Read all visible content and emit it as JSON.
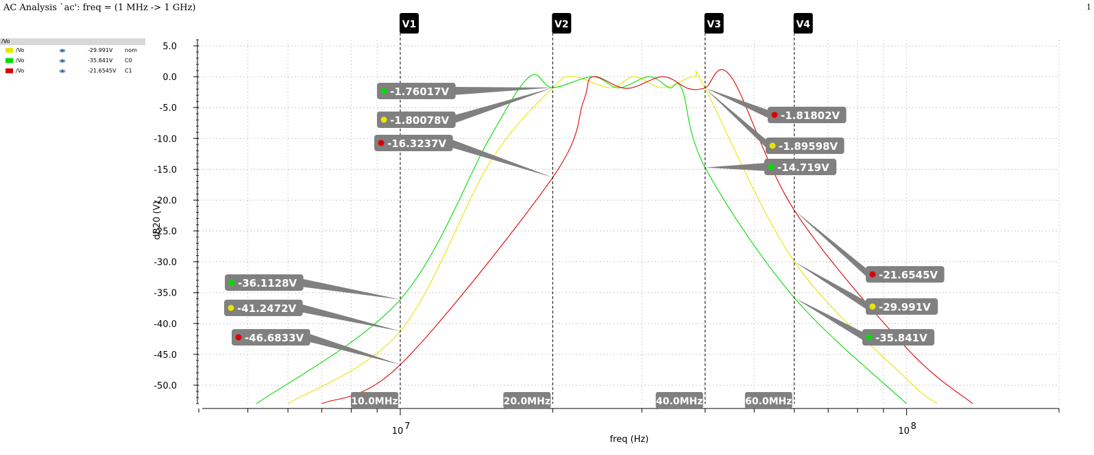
{
  "title": "AC Analysis `ac': freq = (1 MHz -> 1 GHz)",
  "page_number": "1",
  "legend": {
    "header": "/Vo",
    "rows": [
      {
        "name": "/Vo",
        "value": "-29.991V",
        "corner": "nom",
        "color": "#e6e600"
      },
      {
        "name": "/Vo",
        "value": "-35.841V",
        "corner": "C0",
        "color": "#00dd00"
      },
      {
        "name": "/Vo",
        "value": "-21.6545V",
        "corner": "C1",
        "color": "#dd0000"
      }
    ]
  },
  "chart_data": {
    "type": "line",
    "xlabel": "freq (Hz)",
    "ylabel": "dB20 (V)",
    "x_scale": "log",
    "xlim": [
      4000000,
      200000000
    ],
    "ylim": [
      -53,
      6
    ],
    "grid": true,
    "y_ticks": [
      "5.0",
      "0.0",
      "-5.0",
      "-10.0",
      "-15.0",
      "-20.0",
      "-25.0",
      "-30.0",
      "-35.0",
      "-40.0",
      "-45.0",
      "-50.0"
    ],
    "x_tick_values": [
      10000000,
      100000000
    ],
    "x_tick_labels": [
      {
        "base": "10",
        "exp": "7"
      },
      {
        "base": "10",
        "exp": "8"
      }
    ],
    "series": [
      {
        "color": "#e6e600",
        "points": [
          [
            6000000,
            -53
          ],
          [
            10000000,
            -41.2472
          ],
          [
            15000000,
            -14
          ],
          [
            20000000,
            -1.80078
          ],
          [
            22000000,
            0
          ],
          [
            26000000,
            -1.8
          ],
          [
            29000000,
            0
          ],
          [
            33000000,
            -1.8
          ],
          [
            38000000,
            0
          ],
          [
            40000000,
            -1.89598
          ],
          [
            60000000,
            -29.991
          ],
          [
            100000000,
            -49
          ],
          [
            115000000,
            -53
          ]
        ]
      },
      {
        "color": "#00dd00",
        "points": [
          [
            5200000,
            -53
          ],
          [
            10000000,
            -36.1128
          ],
          [
            15000000,
            -10
          ],
          [
            18000000,
            0
          ],
          [
            20000000,
            -1.76017
          ],
          [
            24000000,
            0
          ],
          [
            27000000,
            -1.8
          ],
          [
            31000000,
            0
          ],
          [
            34000000,
            -1.8
          ],
          [
            36000000,
            -2
          ],
          [
            40000000,
            -14.719
          ],
          [
            60000000,
            -35.841
          ],
          [
            100000000,
            -53
          ]
        ]
      },
      {
        "color": "#dd0000",
        "points": [
          [
            7000000,
            -53
          ],
          [
            10000000,
            -46.6833
          ],
          [
            20000000,
            -16.3237
          ],
          [
            23000000,
            -4
          ],
          [
            24000000,
            0
          ],
          [
            28000000,
            -1.9
          ],
          [
            33000000,
            0
          ],
          [
            37000000,
            -1.9
          ],
          [
            40000000,
            -1.81802
          ],
          [
            45000000,
            0
          ],
          [
            60000000,
            -21.6545
          ],
          [
            100000000,
            -44
          ],
          [
            135000000,
            -53
          ]
        ]
      }
    ],
    "markers": [
      {
        "label": "V1",
        "x": 10000000
      },
      {
        "label": "V2",
        "x": 20000000
      },
      {
        "label": "V3",
        "x": 40000000
      },
      {
        "label": "V4",
        "x": 60000000
      }
    ],
    "freq_labels": [
      {
        "text": "10.0MHz",
        "x": 10000000
      },
      {
        "text": "20.0MHz",
        "x": 20000000
      },
      {
        "text": "40.0MHz",
        "x": 40000000
      },
      {
        "text": "60.0MHz",
        "x": 60000000
      }
    ],
    "callouts": [
      {
        "text": "-1.76017V",
        "color": "#00dd00",
        "x": 20000000,
        "y": -1.76017,
        "side": "left",
        "row": 0
      },
      {
        "text": "-1.80078V",
        "color": "#e6e600",
        "x": 20000000,
        "y": -1.80078,
        "side": "left",
        "row": 1
      },
      {
        "text": "-16.3237V",
        "color": "#dd0000",
        "x": 20000000,
        "y": -16.3237,
        "side": "left",
        "row": 2
      },
      {
        "text": "-1.81802V",
        "color": "#dd0000",
        "x": 40000000,
        "y": -1.81802,
        "side": "right",
        "row": 3
      },
      {
        "text": "-1.89598V",
        "color": "#e6e600",
        "x": 40000000,
        "y": -1.89598,
        "side": "right",
        "row": 4
      },
      {
        "text": "-14.719V",
        "color": "#00dd00",
        "x": 40000000,
        "y": -14.719,
        "side": "right",
        "row": 5
      },
      {
        "text": "-36.1128V",
        "color": "#00dd00",
        "x": 10000000,
        "y": -36.1128,
        "side": "left",
        "row": 6
      },
      {
        "text": "-41.2472V",
        "color": "#e6e600",
        "x": 10000000,
        "y": -41.2472,
        "side": "left",
        "row": 7
      },
      {
        "text": "-46.6833V",
        "color": "#dd0000",
        "x": 10000000,
        "y": -46.6833,
        "side": "left",
        "row": 8
      },
      {
        "text": "-21.6545V",
        "color": "#dd0000",
        "x": 60000000,
        "y": -21.6545,
        "side": "right",
        "row": 9
      },
      {
        "text": "-29.991V",
        "color": "#e6e600",
        "x": 60000000,
        "y": -29.991,
        "side": "right",
        "row": 10
      },
      {
        "text": "-35.841V",
        "color": "#00dd00",
        "x": 60000000,
        "y": -35.841,
        "side": "right",
        "row": 11
      }
    ]
  }
}
